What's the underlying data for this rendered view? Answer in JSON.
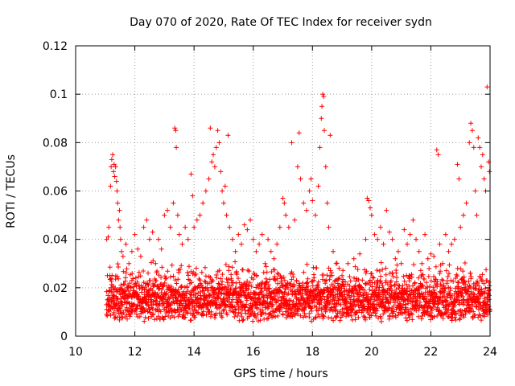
{
  "chart_data": {
    "type": "scatter",
    "title": "Day 070 of 2020, Rate Of TEC Index for receiver sydn",
    "xlabel": "GPS time / hours",
    "ylabel": "ROTI / TECUs",
    "xlim": [
      10,
      24
    ],
    "ylim": [
      0,
      0.12
    ],
    "xticks": [
      10,
      12,
      14,
      16,
      18,
      20,
      22,
      24
    ],
    "yticks": [
      0,
      0.02,
      0.04,
      0.06,
      0.08,
      0.1,
      0.12
    ],
    "xtick_labels": [
      "10",
      "12",
      "14",
      "16",
      "18",
      "20",
      "22",
      "24"
    ],
    "ytick_labels": [
      "0",
      "0.02",
      "0.04",
      "0.06",
      "0.08",
      "0.1",
      "0.12"
    ],
    "grid": true,
    "marker": "plus",
    "color": "#ff0000",
    "series": [
      {
        "name": "ROTI",
        "points": [
          [
            11.05,
            0.04
          ],
          [
            11.1,
            0.041
          ],
          [
            11.12,
            0.045
          ],
          [
            11.15,
            0.025
          ],
          [
            11.18,
            0.062
          ],
          [
            11.2,
            0.07
          ],
          [
            11.22,
            0.073
          ],
          [
            11.25,
            0.075
          ],
          [
            11.28,
            0.068
          ],
          [
            11.3,
            0.071
          ],
          [
            11.32,
            0.066
          ],
          [
            11.35,
            0.07
          ],
          [
            11.38,
            0.064
          ],
          [
            11.4,
            0.06
          ],
          [
            11.42,
            0.055
          ],
          [
            11.45,
            0.048
          ],
          [
            11.48,
            0.052
          ],
          [
            11.5,
            0.045
          ],
          [
            11.52,
            0.04
          ],
          [
            11.55,
            0.035
          ],
          [
            11.6,
            0.033
          ],
          [
            11.7,
            0.038
          ],
          [
            11.8,
            0.03
          ],
          [
            11.9,
            0.035
          ],
          [
            12.0,
            0.042
          ],
          [
            12.1,
            0.036
          ],
          [
            12.2,
            0.033
          ],
          [
            12.3,
            0.045
          ],
          [
            12.4,
            0.048
          ],
          [
            12.5,
            0.04
          ],
          [
            12.6,
            0.043
          ],
          [
            12.7,
            0.03
          ],
          [
            12.8,
            0.04
          ],
          [
            12.9,
            0.036
          ],
          [
            13.0,
            0.05
          ],
          [
            13.1,
            0.052
          ],
          [
            13.2,
            0.045
          ],
          [
            13.3,
            0.055
          ],
          [
            13.35,
            0.086
          ],
          [
            13.38,
            0.085
          ],
          [
            13.4,
            0.078
          ],
          [
            13.45,
            0.05
          ],
          [
            13.5,
            0.042
          ],
          [
            13.6,
            0.038
          ],
          [
            13.7,
            0.045
          ],
          [
            13.8,
            0.04
          ],
          [
            13.9,
            0.067
          ],
          [
            13.95,
            0.058
          ],
          [
            14.0,
            0.045
          ],
          [
            14.1,
            0.048
          ],
          [
            14.2,
            0.05
          ],
          [
            14.3,
            0.055
          ],
          [
            14.4,
            0.06
          ],
          [
            14.5,
            0.065
          ],
          [
            14.55,
            0.086
          ],
          [
            14.6,
            0.072
          ],
          [
            14.65,
            0.075
          ],
          [
            14.7,
            0.07
          ],
          [
            14.75,
            0.078
          ],
          [
            14.8,
            0.085
          ],
          [
            14.85,
            0.08
          ],
          [
            14.9,
            0.068
          ],
          [
            14.95,
            0.06
          ],
          [
            15.0,
            0.055
          ],
          [
            15.05,
            0.062
          ],
          [
            15.1,
            0.05
          ],
          [
            15.15,
            0.083
          ],
          [
            15.2,
            0.045
          ],
          [
            15.3,
            0.04
          ],
          [
            15.4,
            0.035
          ],
          [
            15.5,
            0.042
          ],
          [
            15.6,
            0.038
          ],
          [
            15.7,
            0.046
          ],
          [
            15.8,
            0.044
          ],
          [
            15.9,
            0.048
          ],
          [
            16.0,
            0.04
          ],
          [
            16.1,
            0.035
          ],
          [
            16.2,
            0.038
          ],
          [
            16.3,
            0.042
          ],
          [
            16.4,
            0.03
          ],
          [
            16.5,
            0.04
          ],
          [
            16.6,
            0.035
          ],
          [
            16.7,
            0.032
          ],
          [
            16.8,
            0.038
          ],
          [
            16.9,
            0.045
          ],
          [
            17.0,
            0.057
          ],
          [
            17.05,
            0.055
          ],
          [
            17.1,
            0.05
          ],
          [
            17.2,
            0.045
          ],
          [
            17.3,
            0.08
          ],
          [
            17.4,
            0.048
          ],
          [
            17.5,
            0.07
          ],
          [
            17.55,
            0.084
          ],
          [
            17.6,
            0.065
          ],
          [
            17.7,
            0.055
          ],
          [
            17.8,
            0.052
          ],
          [
            17.9,
            0.06
          ],
          [
            17.95,
            0.065
          ],
          [
            18.0,
            0.056
          ],
          [
            18.1,
            0.05
          ],
          [
            18.2,
            0.062
          ],
          [
            18.25,
            0.078
          ],
          [
            18.3,
            0.09
          ],
          [
            18.32,
            0.095
          ],
          [
            18.35,
            0.1
          ],
          [
            18.38,
            0.099
          ],
          [
            18.4,
            0.085
          ],
          [
            18.45,
            0.07
          ],
          [
            18.5,
            0.055
          ],
          [
            18.55,
            0.045
          ],
          [
            18.6,
            0.083
          ],
          [
            18.7,
            0.035
          ],
          [
            18.8,
            0.03
          ],
          [
            18.9,
            0.028
          ],
          [
            19.0,
            0.025
          ],
          [
            19.2,
            0.03
          ],
          [
            19.4,
            0.032
          ],
          [
            19.6,
            0.034
          ],
          [
            19.8,
            0.04
          ],
          [
            19.85,
            0.057
          ],
          [
            19.9,
            0.056
          ],
          [
            19.95,
            0.053
          ],
          [
            20.0,
            0.05
          ],
          [
            20.1,
            0.042
          ],
          [
            20.2,
            0.04
          ],
          [
            20.3,
            0.045
          ],
          [
            20.4,
            0.038
          ],
          [
            20.5,
            0.052
          ],
          [
            20.6,
            0.043
          ],
          [
            20.7,
            0.04
          ],
          [
            20.8,
            0.032
          ],
          [
            20.9,
            0.035
          ],
          [
            21.0,
            0.03
          ],
          [
            21.1,
            0.044
          ],
          [
            21.2,
            0.038
          ],
          [
            21.3,
            0.042
          ],
          [
            21.4,
            0.048
          ],
          [
            21.5,
            0.04
          ],
          [
            21.6,
            0.035
          ],
          [
            21.7,
            0.03
          ],
          [
            21.8,
            0.042
          ],
          [
            21.9,
            0.032
          ],
          [
            22.0,
            0.034
          ],
          [
            22.1,
            0.033
          ],
          [
            22.2,
            0.077
          ],
          [
            22.25,
            0.075
          ],
          [
            22.3,
            0.038
          ],
          [
            22.4,
            0.03
          ],
          [
            22.5,
            0.042
          ],
          [
            22.6,
            0.035
          ],
          [
            22.7,
            0.038
          ],
          [
            22.8,
            0.04
          ],
          [
            22.9,
            0.071
          ],
          [
            22.95,
            0.065
          ],
          [
            23.0,
            0.045
          ],
          [
            23.1,
            0.05
          ],
          [
            23.2,
            0.055
          ],
          [
            23.3,
            0.08
          ],
          [
            23.35,
            0.088
          ],
          [
            23.4,
            0.085
          ],
          [
            23.45,
            0.078
          ],
          [
            23.5,
            0.06
          ],
          [
            23.55,
            0.05
          ],
          [
            23.6,
            0.082
          ],
          [
            23.65,
            0.078
          ],
          [
            23.7,
            0.07
          ],
          [
            23.75,
            0.075
          ],
          [
            23.8,
            0.065
          ],
          [
            23.85,
            0.06
          ],
          [
            23.9,
            0.103
          ],
          [
            23.95,
            0.072
          ],
          [
            23.98,
            0.068
          ]
        ]
      }
    ],
    "dense_band": {
      "x_start": 11.05,
      "x_end": 24.0,
      "typical_floor": 0.006,
      "typical_level": 0.016,
      "typical_spread": 0.012,
      "step_hours": 0.02
    }
  }
}
